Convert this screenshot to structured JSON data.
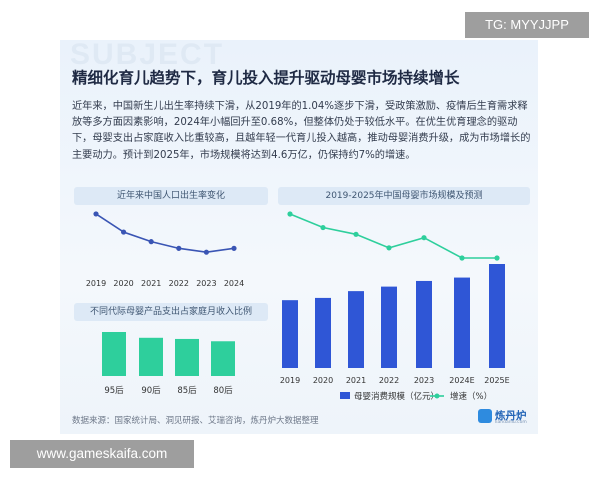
{
  "header": {
    "title": "精细化育儿趋势下，育儿投入提升驱动母婴市场持续增长",
    "paragraph": "近年来，中国新生儿出生率持续下滑，从2019年的1.04%逐步下滑，受政策激励、疫情后生育需求释放等多方面因素影响，2024年小幅回升至0.68%，但整体仍处于较低水平。在优生优育理念的驱动下，母婴支出占家庭收入比重较高，且越年轻一代育儿投入越高，推动母婴消费升级，成为市场增长的主要动力。预计到2025年，市场规模将达到4.6万亿，仍保持约7%的增速。"
  },
  "background_watermark": "SUBJECT",
  "footer": {
    "source": "数据来源：国家统计局、洞见研报、艾瑞咨询，炼丹炉大数据整理",
    "logo_text": "炼丹炉",
    "logo_sub": "liandanlu.com"
  },
  "overlays": {
    "top_tag": "TG: MYYJJPP",
    "bottom_tag": "www.gameskaifa.com"
  },
  "colors": {
    "line_dark": "#3a55b4",
    "bar_blue": "#2f56d6",
    "growth_green": "#2ecf9c",
    "bar_green": "#2ecf9c"
  },
  "chart_data": [
    {
      "type": "line",
      "title": "近年来中国人口出生率变化",
      "categories": [
        "2019",
        "2020",
        "2021",
        "2022",
        "2023",
        "2024"
      ],
      "values": [
        1.04,
        0.85,
        0.75,
        0.68,
        0.64,
        0.68
      ],
      "unit": "%",
      "grid": false
    },
    {
      "type": "bar",
      "title": "不同代际母婴产品支出占家庭月收入比例",
      "categories": [
        "95后",
        "90后",
        "85后",
        "80后"
      ],
      "values": [
        38,
        33,
        32,
        30
      ],
      "grid": false
    },
    {
      "type": "bar+line",
      "title": "2019-2025年中国母婴市场规模及预测",
      "categories": [
        "2019",
        "2020",
        "2021",
        "2022",
        "2023",
        "2024E",
        "2025E"
      ],
      "series": [
        {
          "name": "母婴消费规模（亿元）",
          "type": "bar",
          "values": [
            30000,
            31000,
            34000,
            36000,
            38500,
            40000,
            46000
          ]
        },
        {
          "name": "增速（%）",
          "type": "line",
          "values": [
            13.5,
            11.5,
            10.5,
            8.5,
            10,
            7,
            7
          ]
        }
      ],
      "legend_position": "bottom",
      "grid": false
    }
  ]
}
